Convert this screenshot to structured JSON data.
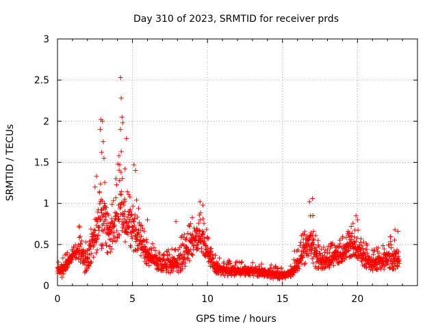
{
  "chart_data": {
    "type": "scatter",
    "title": "Day 310 of 2023, SRMTID for receiver prds",
    "xlabel": "GPS time / hours",
    "ylabel": "SRMTID / TECUs",
    "xlim": [
      0,
      24
    ],
    "ylim": [
      0,
      3
    ],
    "xticks": [
      0,
      5,
      10,
      15,
      20
    ],
    "yticks": [
      0,
      0.5,
      1,
      1.5,
      2,
      2.5,
      3
    ],
    "xtick_labels": [
      "0",
      "5",
      "10",
      "15",
      "20"
    ],
    "ytick_labels": [
      "0",
      "0.5",
      "1",
      "1.5",
      "2",
      "2.5",
      "3"
    ],
    "grid": true,
    "marker": "+",
    "color": "#ff0000",
    "envelope": {
      "x": [
        0,
        0.3,
        0.6,
        1.0,
        1.3,
        1.5,
        1.8,
        2.0,
        2.3,
        2.6,
        2.9,
        3.2,
        3.5,
        3.8,
        4.1,
        4.3,
        4.6,
        4.9,
        5.2,
        5.6,
        6.0,
        6.5,
        7.0,
        7.5,
        8.0,
        8.5,
        8.8,
        9.1,
        9.4,
        9.7,
        10.0,
        10.3,
        10.6,
        11.0,
        12.0,
        13.0,
        14.0,
        14.5,
        15.0,
        15.5,
        15.8,
        16.1,
        16.4,
        16.7,
        17.0,
        17.3,
        17.7,
        18.0,
        18.5,
        19.0,
        19.5,
        19.8,
        20.0,
        20.3,
        20.7,
        21.0,
        21.5,
        22.0,
        22.4,
        22.8
      ],
      "low": [
        0.12,
        0.1,
        0.2,
        0.3,
        0.35,
        0.3,
        0.15,
        0.2,
        0.3,
        0.4,
        0.45,
        0.4,
        0.4,
        0.5,
        0.6,
        0.6,
        0.5,
        0.45,
        0.4,
        0.35,
        0.25,
        0.2,
        0.18,
        0.15,
        0.15,
        0.2,
        0.3,
        0.4,
        0.45,
        0.4,
        0.3,
        0.2,
        0.15,
        0.12,
        0.12,
        0.12,
        0.1,
        0.08,
        0.08,
        0.1,
        0.12,
        0.2,
        0.25,
        0.3,
        0.25,
        0.2,
        0.2,
        0.2,
        0.25,
        0.3,
        0.35,
        0.35,
        0.3,
        0.25,
        0.2,
        0.18,
        0.2,
        0.2,
        0.2,
        0.2
      ],
      "high": [
        0.3,
        0.35,
        0.4,
        0.45,
        0.55,
        0.8,
        0.65,
        0.6,
        0.85,
        1.1,
        1.6,
        1.5,
        1.0,
        1.2,
        1.6,
        1.5,
        1.1,
        1.35,
        1.1,
        0.8,
        0.55,
        0.5,
        0.45,
        0.45,
        0.55,
        0.65,
        0.8,
        0.9,
        0.95,
        0.95,
        0.65,
        0.45,
        0.35,
        0.32,
        0.3,
        0.28,
        0.27,
        0.25,
        0.22,
        0.25,
        0.35,
        0.5,
        0.7,
        0.95,
        0.95,
        0.6,
        0.5,
        0.5,
        0.55,
        0.6,
        0.7,
        0.8,
        0.7,
        0.55,
        0.5,
        0.45,
        0.5,
        0.6,
        0.65,
        0.45
      ]
    },
    "spikes": [
      {
        "x": 2.9,
        "y": 2.02
      },
      {
        "x": 3.0,
        "y": 2.0
      },
      {
        "x": 2.85,
        "y": 1.9
      },
      {
        "x": 3.05,
        "y": 1.75
      },
      {
        "x": 2.95,
        "y": 1.62
      },
      {
        "x": 3.1,
        "y": 1.55
      },
      {
        "x": 2.6,
        "y": 1.33
      },
      {
        "x": 2.5,
        "y": 1.2
      },
      {
        "x": 4.2,
        "y": 2.53
      },
      {
        "x": 4.25,
        "y": 2.28
      },
      {
        "x": 4.3,
        "y": 2.05
      },
      {
        "x": 4.35,
        "y": 1.98
      },
      {
        "x": 4.2,
        "y": 1.9
      },
      {
        "x": 4.6,
        "y": 1.79
      },
      {
        "x": 4.25,
        "y": 1.63
      },
      {
        "x": 4.1,
        "y": 1.58
      },
      {
        "x": 4.5,
        "y": 1.42
      },
      {
        "x": 5.1,
        "y": 1.47
      },
      {
        "x": 5.2,
        "y": 1.4
      },
      {
        "x": 3.9,
        "y": 1.3
      },
      {
        "x": 9.5,
        "y": 1.02
      },
      {
        "x": 9.7,
        "y": 0.98
      },
      {
        "x": 17.0,
        "y": 1.06
      },
      {
        "x": 16.8,
        "y": 1.02
      },
      {
        "x": 19.9,
        "y": 0.85
      },
      {
        "x": 20.0,
        "y": 0.8
      },
      {
        "x": 22.5,
        "y": 0.68
      },
      {
        "x": 22.7,
        "y": 0.66
      },
      {
        "x": 6.0,
        "y": 0.8
      },
      {
        "x": 7.9,
        "y": 0.78
      },
      {
        "x": 15.8,
        "y": 0.42
      }
    ]
  }
}
